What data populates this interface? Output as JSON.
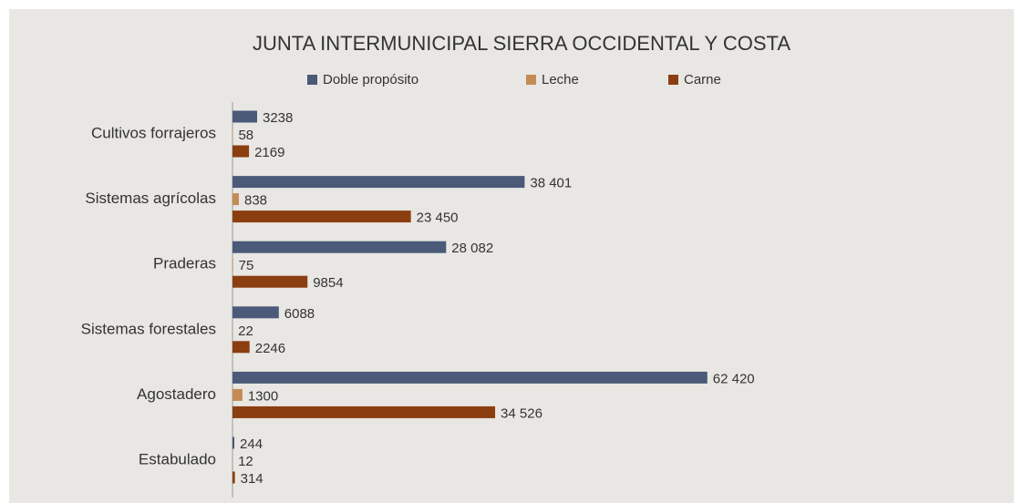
{
  "chart_data": {
    "type": "hbar",
    "title": "JUNTA INTERMUNICIPAL SIERRA OCCIDENTAL Y COSTA",
    "categories": [
      "Cultivos forrajeros",
      "Sistemas agrícolas",
      "Praderas",
      "Sistemas forestales",
      "Agostadero",
      "Estabulado"
    ],
    "series": [
      {
        "name": "Doble propósito",
        "color": "#4a5a78",
        "values": [
          3238,
          38401,
          28082,
          6088,
          62420,
          244
        ],
        "value_labels": [
          "3238",
          "38 401",
          "28 082",
          "6088",
          "62 420",
          "244"
        ]
      },
      {
        "name": "Leche",
        "color": "#c58b54",
        "values": [
          58,
          838,
          75,
          22,
          1300,
          12
        ],
        "value_labels": [
          "58",
          "838",
          "75",
          "22",
          "1300",
          "12"
        ]
      },
      {
        "name": "Carne",
        "color": "#8b3e10",
        "values": [
          2169,
          23450,
          9854,
          2246,
          34526,
          314
        ],
        "value_labels": [
          "2169",
          "23 450",
          "9854",
          "2246",
          "34 526",
          "314"
        ]
      }
    ],
    "xlim": [
      0,
      70000
    ],
    "legend": "top"
  }
}
